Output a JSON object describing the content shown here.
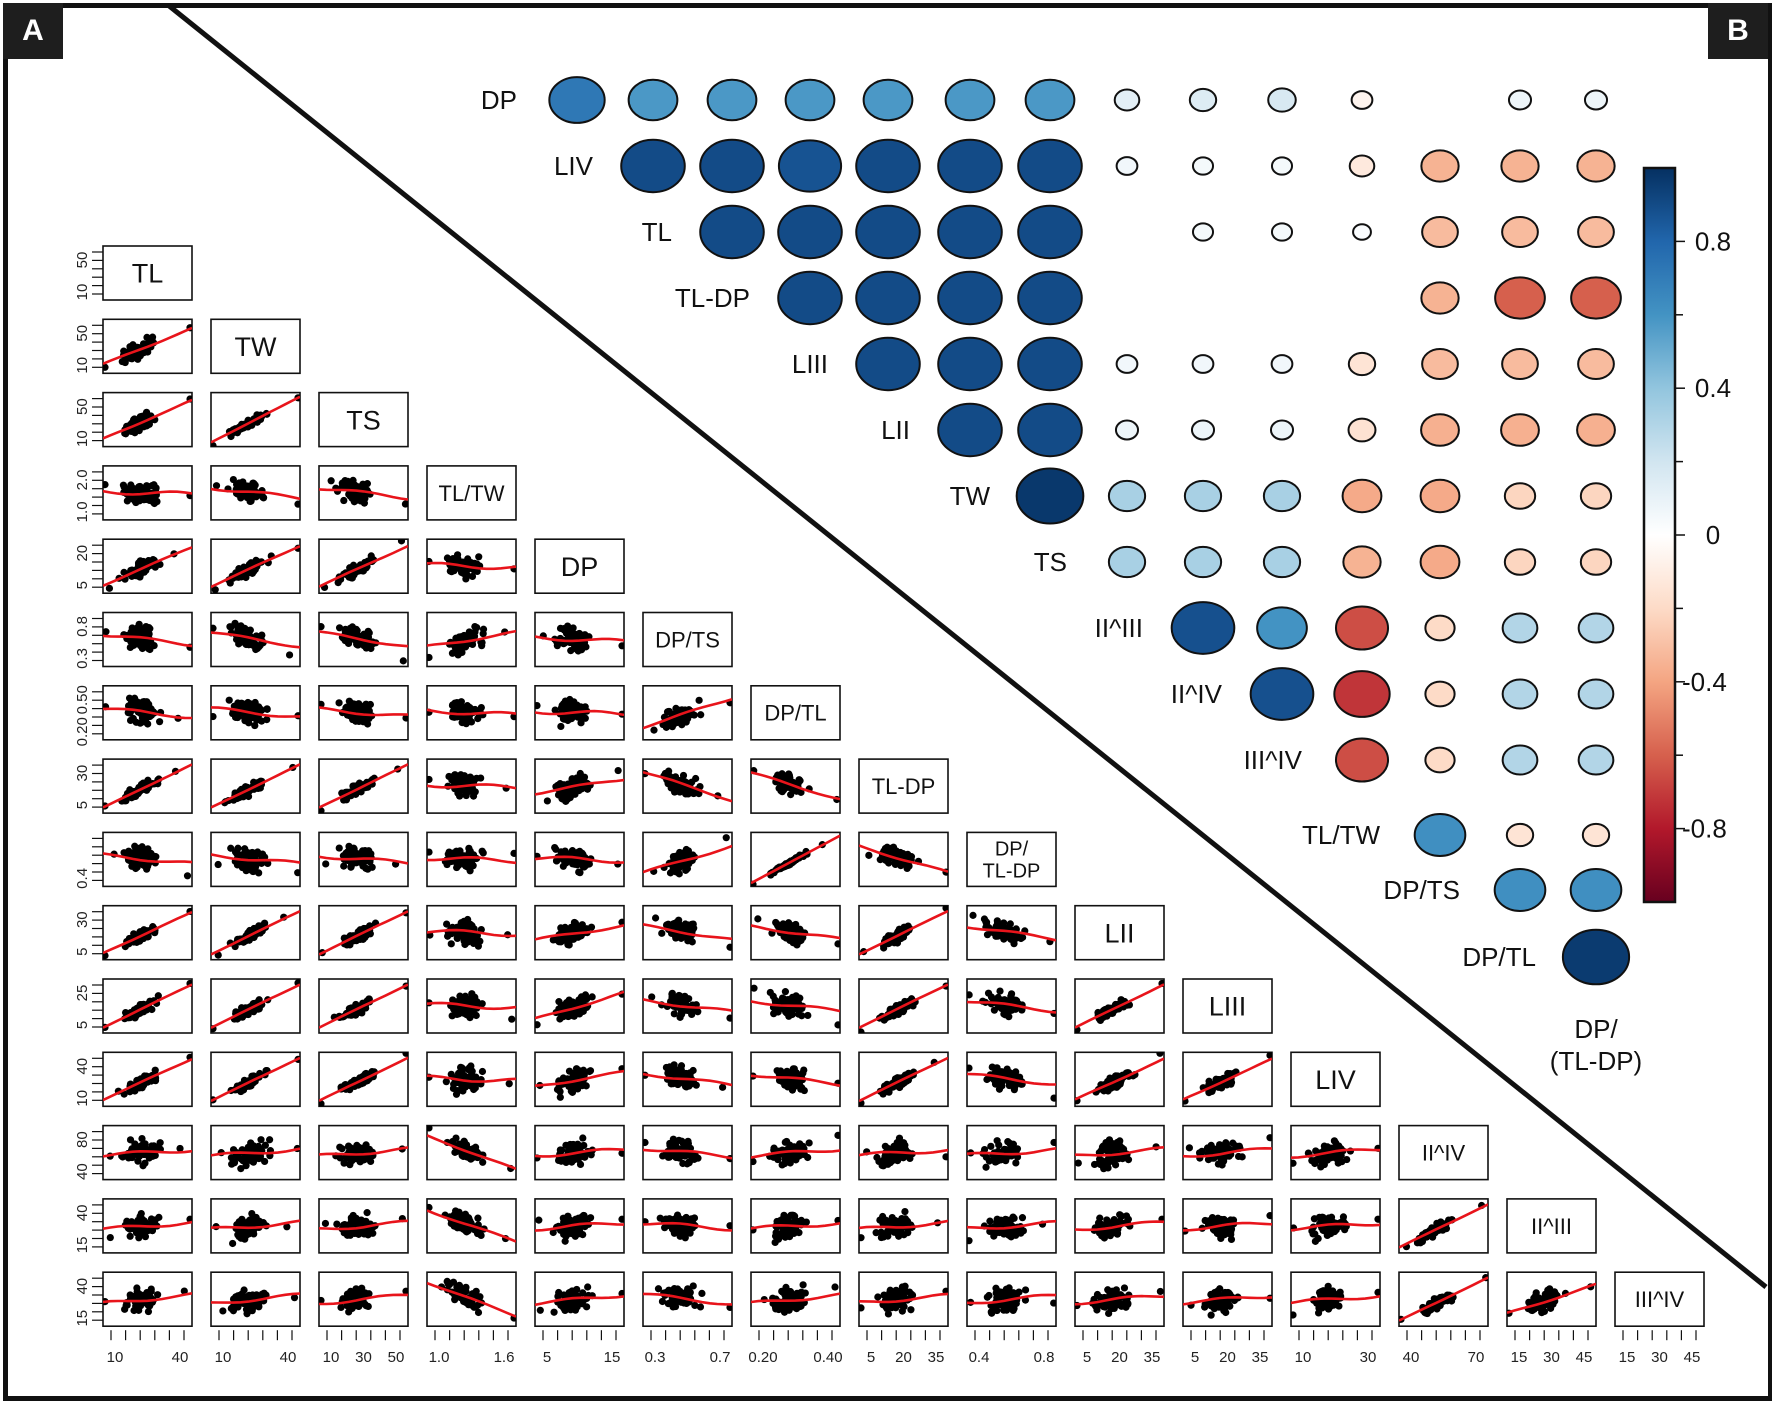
{
  "panels": {
    "left_tag": "A",
    "right_tag": "B"
  },
  "chart_data": [
    {
      "type": "scatter",
      "title": "Scatterplot matrix with LOESS fits (lower triangle)",
      "variables": [
        "TL",
        "TW",
        "TS",
        "TL/TW",
        "DP",
        "DP/TS",
        "DP/TL",
        "TL-DP",
        "DP/\nTL-DP",
        "LII",
        "LIII",
        "LIV",
        "II^IV",
        "II^III",
        "III^IV"
      ],
      "y_tick_labels": [
        [
          "10",
          "50"
        ],
        [
          "10",
          "50"
        ],
        [
          "10",
          "50"
        ],
        [
          "1.0",
          "2.0"
        ],
        [
          "5",
          "20"
        ],
        [
          "0.3",
          "0.8"
        ],
        [
          "0.20",
          "0.50"
        ],
        [
          "5",
          "30"
        ],
        [
          "0.4",
          ""
        ],
        [
          "5",
          "30"
        ],
        [
          "5",
          "25"
        ],
        [
          "10",
          "40"
        ],
        [
          "40",
          "80"
        ],
        [
          "15",
          "40"
        ],
        [
          "15",
          "40"
        ]
      ],
      "x_tick_labels": [
        [
          "10",
          "40"
        ],
        [
          "10",
          "40"
        ],
        [
          "10",
          "30",
          "50"
        ],
        [
          "1.0",
          "1.6"
        ],
        [
          "5",
          "15"
        ],
        [
          "0.3",
          "0.7"
        ],
        [
          "0.20",
          "0.40"
        ],
        [
          "5",
          "20",
          "35"
        ],
        [
          "0.4",
          "0.8"
        ],
        [
          "5",
          "20",
          "35"
        ],
        [
          "5",
          "20",
          "35"
        ],
        [
          "10",
          "30"
        ],
        [
          "40",
          "70"
        ],
        [
          "15",
          "30",
          "45"
        ],
        [
          "15",
          "30",
          "45"
        ]
      ],
      "point_color": "#000000",
      "fit_color": "#e8141b",
      "trend": [
        [],
        [
          0.75
        ],
        [
          0.8,
          0.95
        ],
        [
          -0.1,
          -0.35,
          -0.35
        ],
        [
          0.8,
          0.85,
          0.85,
          -0.1
        ],
        [
          -0.35,
          -0.5,
          -0.5,
          0.5,
          -0.15
        ],
        [
          -0.3,
          -0.3,
          -0.25,
          -0.15,
          -0.1,
          0.6
        ],
        [
          0.9,
          0.9,
          0.9,
          -0.1,
          0.5,
          -0.6,
          -0.55
        ],
        [
          -0.3,
          -0.3,
          -0.25,
          -0.1,
          -0.1,
          0.55,
          0.99,
          -0.55
        ],
        [
          0.85,
          0.9,
          0.9,
          -0.1,
          0.5,
          -0.5,
          -0.45,
          0.9,
          -0.45
        ],
        [
          0.9,
          0.9,
          0.9,
          -0.1,
          0.55,
          -0.4,
          -0.35,
          0.9,
          -0.35,
          0.9
        ],
        [
          0.85,
          0.9,
          0.9,
          -0.1,
          0.5,
          -0.4,
          -0.35,
          0.9,
          -0.35,
          0.85,
          0.85
        ],
        [
          0.2,
          0.25,
          0.25,
          -0.7,
          0.2,
          -0.3,
          0.25,
          0.2,
          0.2,
          0.25,
          0.25,
          0.25
        ],
        [
          0.25,
          0.25,
          0.25,
          -0.65,
          0.2,
          -0.2,
          0.2,
          0.25,
          0.2,
          0.25,
          0.2,
          0.2,
          0.9
        ],
        [
          0.3,
          0.3,
          0.3,
          -0.7,
          0.3,
          -0.35,
          0.3,
          0.25,
          0.25,
          0.25,
          0.25,
          0.25,
          0.9,
          0.6
        ]
      ]
    },
    {
      "type": "heatmap",
      "title": "Correlation plot (ellipse-style corrplot, upper triangle)",
      "row_labels": [
        "DP",
        "LIV",
        "TL",
        "TL-DP",
        "LIII",
        "LII",
        "TW",
        "TS",
        "II^III",
        "II^IV",
        "III^IV",
        "TL/TW",
        "DP/TS",
        "DP/TL"
      ],
      "col_order": [
        "LIV",
        "TL",
        "TL-DP",
        "LIII",
        "LII",
        "TW",
        "TS",
        "II^III",
        "II^IV",
        "III^IV",
        "TL/TW",
        "DP/TS",
        "DP/TL",
        "DP/(TL-DP)"
      ],
      "last_col_label_line1": "DP/",
      "last_col_label_line2": "(TL-DP)",
      "values": [
        [
          0.72,
          0.58,
          0.58,
          0.58,
          0.58,
          0.58,
          0.58,
          0.12,
          0.15,
          0.17,
          -0.06,
          null,
          0.08,
          0.08
        ],
        [
          null,
          0.9,
          0.9,
          0.87,
          0.9,
          0.9,
          0.9,
          0.06,
          0.05,
          0.05,
          -0.12,
          -0.35,
          -0.35,
          -0.35
        ],
        [
          null,
          null,
          0.9,
          0.9,
          0.9,
          0.9,
          0.9,
          null,
          0.05,
          0.05,
          0.02,
          -0.32,
          -0.32,
          -0.32
        ],
        [
          null,
          null,
          null,
          0.9,
          0.9,
          0.9,
          0.9,
          null,
          null,
          null,
          null,
          -0.35,
          -0.6,
          -0.6
        ],
        [
          null,
          null,
          null,
          null,
          0.9,
          0.9,
          0.9,
          0.06,
          0.06,
          0.06,
          -0.15,
          -0.32,
          -0.32,
          -0.32
        ],
        [
          null,
          null,
          null,
          null,
          null,
          0.9,
          0.9,
          0.08,
          0.08,
          0.08,
          -0.16,
          -0.36,
          -0.36,
          -0.36
        ],
        [
          null,
          null,
          null,
          null,
          null,
          null,
          0.97,
          0.33,
          0.33,
          0.33,
          -0.38,
          -0.38,
          -0.22,
          -0.22
        ],
        [
          null,
          null,
          null,
          null,
          null,
          null,
          null,
          0.33,
          0.33,
          0.33,
          -0.35,
          -0.38,
          -0.22,
          -0.22
        ],
        [
          null,
          null,
          null,
          null,
          null,
          null,
          null,
          null,
          0.88,
          0.6,
          -0.65,
          -0.2,
          0.3,
          0.3
        ],
        [
          null,
          null,
          null,
          null,
          null,
          null,
          null,
          null,
          null,
          0.88,
          -0.72,
          -0.2,
          0.3,
          0.3
        ],
        [
          null,
          null,
          null,
          null,
          null,
          null,
          null,
          null,
          null,
          null,
          -0.65,
          -0.2,
          0.3,
          0.3
        ],
        [
          null,
          null,
          null,
          null,
          null,
          null,
          null,
          null,
          null,
          null,
          null,
          0.62,
          -0.15,
          -0.15
        ],
        [
          null,
          null,
          null,
          null,
          null,
          null,
          null,
          null,
          null,
          null,
          null,
          null,
          0.62,
          0.62
        ],
        [
          null,
          null,
          null,
          null,
          null,
          null,
          null,
          null,
          null,
          null,
          null,
          null,
          null,
          0.96
        ]
      ],
      "colorbar": {
        "range": [
          -1,
          1
        ],
        "tick_labels": [
          "0.8",
          "0.4",
          "0",
          "-0.4",
          "-0.8"
        ],
        "tick_values": [
          0.8,
          0.4,
          0,
          -0.4,
          -0.8
        ],
        "minor_ticks": [
          0.6,
          0.2,
          -0.2,
          -0.6
        ],
        "low_color": "#67001f",
        "mid_color": "#ffffff",
        "high_color": "#053061"
      }
    }
  ]
}
